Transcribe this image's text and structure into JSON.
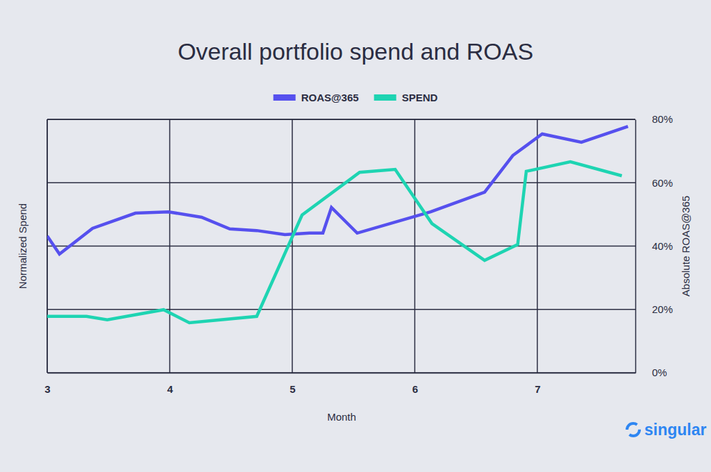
{
  "chart_data": {
    "type": "line",
    "title": "Overall portfolio spend and ROAS",
    "x_label": "Month",
    "y_label": "Normalized Spend",
    "y2_label": "Absolute ROAS@365",
    "xlim": [
      3,
      7.8
    ],
    "xticks": [
      3,
      4,
      5,
      6,
      7
    ],
    "y2lim": [
      0,
      80
    ],
    "y2ticks": [
      {
        "value": 0,
        "label": "0%"
      },
      {
        "value": 20,
        "label": "20%"
      },
      {
        "value": 40,
        "label": "40%"
      },
      {
        "value": 60,
        "label": "60%"
      },
      {
        "value": 80,
        "label": "80%"
      }
    ],
    "grid": true,
    "legend": "top",
    "annotations": [
      "singular"
    ],
    "series": [
      {
        "name": "ROAS@365",
        "color": "#5650ee",
        "axis": "y2",
        "x": [
          3.0,
          3.1,
          3.37,
          3.72,
          3.99,
          4.26,
          4.49,
          4.71,
          4.94,
          5.14,
          5.25,
          5.32,
          5.53,
          6.13,
          6.57,
          6.8,
          7.04,
          7.36,
          7.74
        ],
        "values": [
          43.2,
          37.5,
          45.6,
          50.4,
          50.8,
          49.1,
          45.4,
          44.9,
          43.6,
          44.1,
          44.1,
          52.2,
          44.1,
          50.8,
          57.0,
          68.6,
          75.4,
          72.8,
          77.8
        ]
      },
      {
        "name": "SPEND",
        "color": "#1ed4b2",
        "axis": "y2",
        "x": [
          3.0,
          3.32,
          3.49,
          3.95,
          4.16,
          4.71,
          5.08,
          5.55,
          5.84,
          6.14,
          6.57,
          6.84,
          6.91,
          7.27,
          7.69
        ],
        "values": [
          17.8,
          17.8,
          16.7,
          19.9,
          15.8,
          17.8,
          49.8,
          63.3,
          64.2,
          47.1,
          35.5,
          40.5,
          63.6,
          66.6,
          62.2
        ]
      }
    ]
  }
}
